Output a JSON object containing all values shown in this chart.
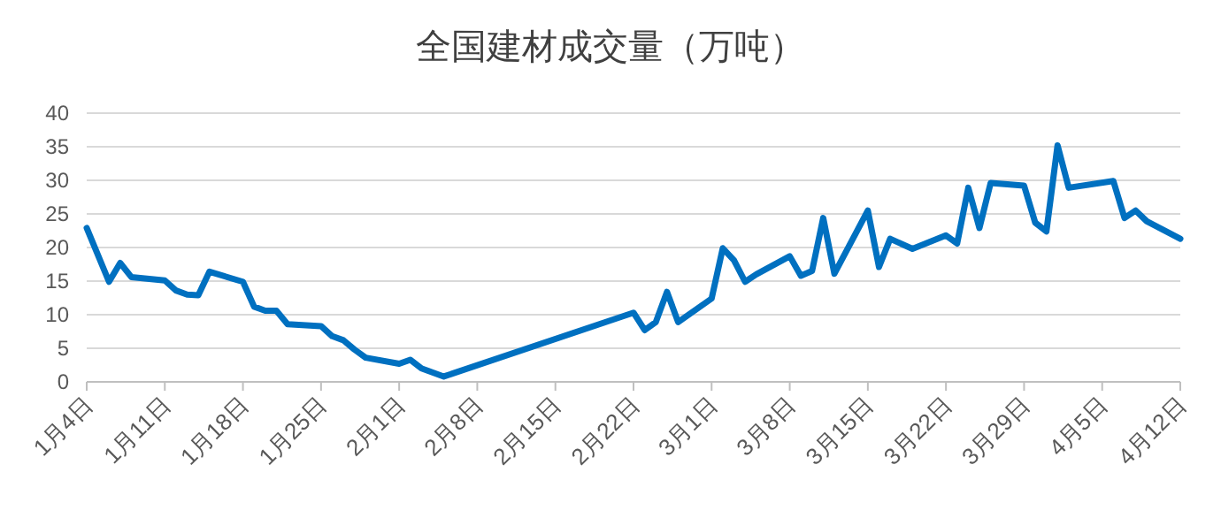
{
  "chart_data": {
    "type": "line",
    "title": "全国建材成交量（万吨）",
    "x": [
      "--01-04",
      "--01-06",
      "--01-07",
      "--01-08",
      "--01-11",
      "--01-12",
      "--01-13",
      "--01-14",
      "--01-15",
      "--01-18",
      "--01-19",
      "--01-20",
      "--01-21",
      "--01-22",
      "--01-25",
      "--01-26",
      "--01-27",
      "--01-28",
      "--01-29",
      "--02-01",
      "--02-02",
      "--02-03",
      "--02-05",
      "--02-22",
      "--02-23",
      "--02-24",
      "--02-25",
      "--02-26",
      "--03-01",
      "--03-02",
      "--03-03",
      "--03-04",
      "--03-05",
      "--03-08",
      "--03-09",
      "--03-10",
      "--03-11",
      "--03-12",
      "--03-15",
      "--03-16",
      "--03-17",
      "--03-19",
      "--03-22",
      "--03-23",
      "--03-24",
      "--03-25",
      "--03-26",
      "--03-29",
      "--03-30",
      "--03-31",
      "--04-01",
      "--04-02",
      "--04-06",
      "--04-07",
      "--04-08",
      "--04-09",
      "--04-12"
    ],
    "values": [
      22.9,
      14.9,
      17.7,
      15.6,
      15.1,
      13.6,
      13.0,
      12.9,
      16.4,
      14.9,
      11.2,
      10.6,
      10.6,
      8.6,
      8.3,
      6.8,
      6.2,
      4.8,
      3.6,
      2.7,
      3.3,
      2.0,
      0.8,
      10.3,
      7.7,
      8.9,
      13.4,
      8.9,
      12.4,
      19.9,
      18.1,
      14.9,
      16.0,
      18.7,
      15.8,
      16.5,
      24.4,
      16.1,
      25.5,
      17.1,
      21.3,
      19.8,
      21.8,
      20.6,
      28.9,
      22.9,
      29.6,
      29.2,
      23.7,
      22.4,
      35.2,
      28.9,
      29.9,
      24.4,
      25.5,
      23.9,
      21.3
    ],
    "color": "#0070c0",
    "xlim": [
      "--01-04",
      "--04-12"
    ],
    "xticks": [
      {
        "value": "--01-04",
        "label": "1月4日"
      },
      {
        "value": "--01-11",
        "label": "1月11日"
      },
      {
        "value": "--01-18",
        "label": "1月18日"
      },
      {
        "value": "--01-25",
        "label": "1月25日"
      },
      {
        "value": "--02-01",
        "label": "2月1日"
      },
      {
        "value": "--02-08",
        "label": "2月8日"
      },
      {
        "value": "--02-15",
        "label": "2月15日"
      },
      {
        "value": "--02-22",
        "label": "2月22日"
      },
      {
        "value": "--03-01",
        "label": "3月1日"
      },
      {
        "value": "--03-08",
        "label": "3月8日"
      },
      {
        "value": "--03-15",
        "label": "3月15日"
      },
      {
        "value": "--03-22",
        "label": "3月22日"
      },
      {
        "value": "--03-29",
        "label": "3月29日"
      },
      {
        "value": "--04-05",
        "label": "4月5日"
      },
      {
        "value": "--04-12",
        "label": "4月12日"
      }
    ],
    "ylim": [
      0,
      40
    ],
    "yticks": [
      0,
      5,
      10,
      15,
      20,
      25,
      30,
      35,
      40
    ],
    "grid": "y",
    "line_style": "solid"
  }
}
